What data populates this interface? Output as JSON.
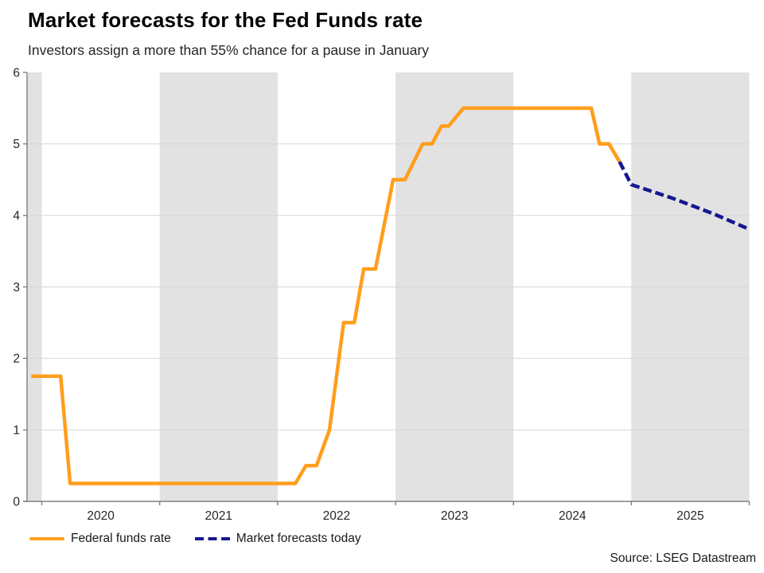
{
  "header": {
    "title": "Market forecasts for the Fed Funds rate",
    "subtitle": "Investors assign a more than 55% chance for a pause in January"
  },
  "legend": {
    "items": [
      {
        "label": "Federal funds rate",
        "style": "solid",
        "color": "#FF9E1C"
      },
      {
        "label": "Market forecasts today",
        "style": "dashed",
        "color": "#17178F"
      }
    ]
  },
  "footer": {
    "source": "Source: LSEG Datastream"
  },
  "chart_data": {
    "type": "line",
    "title": "Market forecasts for the Fed Funds rate",
    "subtitle": "Investors assign a more than 55% chance for a pause in January",
    "xlabel": "",
    "ylabel": "",
    "x_axis": {
      "range": [
        2019.875,
        2026
      ],
      "year_labels": [
        "2020",
        "2021",
        "2022",
        "2023",
        "2024",
        "2025"
      ],
      "label_center_years": [
        2020.5,
        2021.5,
        2022.5,
        2023.5,
        2024.5,
        2025.5
      ],
      "boundary_tick_years": [
        2020,
        2021,
        2022,
        2023,
        2024,
        2025,
        2026
      ]
    },
    "y_axis": {
      "range": [
        0,
        6
      ],
      "ticks": [
        0,
        1,
        2,
        3,
        4,
        5,
        6
      ],
      "gridline_values": [
        1,
        2,
        3,
        4,
        5
      ]
    },
    "grid": "horizontal-only",
    "legend_position": "bottom-left",
    "shaded_year_bands": [
      [
        2019.875,
        2020
      ],
      [
        2021,
        2022
      ],
      [
        2023,
        2024
      ],
      [
        2025,
        2026
      ]
    ],
    "series": [
      {
        "name": "Federal funds rate",
        "style": "solid",
        "color": "#FF9E1C",
        "points": [
          [
            2019.91,
            1.75
          ],
          [
            2020.16,
            1.75
          ],
          [
            2020.24,
            0.25
          ],
          [
            2022.15,
            0.25
          ],
          [
            2022.24,
            0.5
          ],
          [
            2022.33,
            0.5
          ],
          [
            2022.44,
            1.0
          ],
          [
            2022.56,
            2.5
          ],
          [
            2022.65,
            2.5
          ],
          [
            2022.73,
            3.25
          ],
          [
            2022.83,
            3.25
          ],
          [
            2022.98,
            4.5
          ],
          [
            2023.08,
            4.5
          ],
          [
            2023.23,
            5.0
          ],
          [
            2023.31,
            5.0
          ],
          [
            2023.39,
            5.25
          ],
          [
            2023.45,
            5.25
          ],
          [
            2023.575,
            5.5
          ],
          [
            2024.66,
            5.5
          ],
          [
            2024.73,
            5.0
          ],
          [
            2024.81,
            5.0
          ],
          [
            2024.9,
            4.75
          ]
        ]
      },
      {
        "name": "Market forecasts today",
        "style": "dashed",
        "color": "#17178F",
        "points": [
          [
            2024.9,
            4.75
          ],
          [
            2025.0,
            4.43
          ],
          [
            2025.35,
            4.24
          ],
          [
            2025.7,
            4.02
          ],
          [
            2025.98,
            3.82
          ]
        ]
      }
    ],
    "colors": {
      "band_gray": "#E2E2E2",
      "gridline": "#D6D6D6",
      "axis": "#808080",
      "tick_text": "#262626"
    }
  }
}
